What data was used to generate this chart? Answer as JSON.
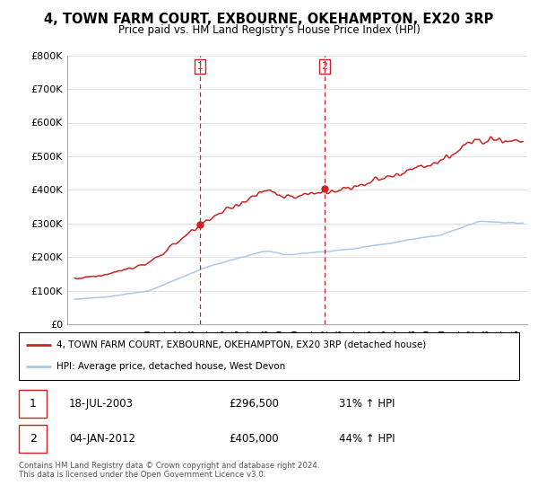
{
  "title": "4, TOWN FARM COURT, EXBOURNE, OKEHAMPTON, EX20 3RP",
  "subtitle": "Price paid vs. HM Land Registry's House Price Index (HPI)",
  "ylim": [
    0,
    800000
  ],
  "yticks": [
    0,
    100000,
    200000,
    300000,
    400000,
    500000,
    600000,
    700000,
    800000
  ],
  "ytick_labels": [
    "£0",
    "£100K",
    "£200K",
    "£300K",
    "£400K",
    "£500K",
    "£600K",
    "£700K",
    "£800K"
  ],
  "hpi_color": "#adc8e8",
  "price_color": "#cc2222",
  "sale1_date": 2003.54,
  "sale1_price": 296500,
  "sale1_label": "1",
  "sale2_date": 2012.01,
  "sale2_price": 405000,
  "sale2_label": "2",
  "legend_price_label": "4, TOWN FARM COURT, EXBOURNE, OKEHAMPTON, EX20 3RP (detached house)",
  "legend_hpi_label": "HPI: Average price, detached house, West Devon",
  "table_row1": [
    "1",
    "18-JUL-2003",
    "£296,500",
    "31% ↑ HPI"
  ],
  "table_row2": [
    "2",
    "04-JAN-2012",
    "£405,000",
    "44% ↑ HPI"
  ],
  "footnote": "Contains HM Land Registry data © Crown copyright and database right 2024.\nThis data is licensed under the Open Government Licence v3.0.",
  "background_color": "#ffffff",
  "grid_color": "#dddddd",
  "xlim_left": 1994.5,
  "xlim_right": 2025.8
}
